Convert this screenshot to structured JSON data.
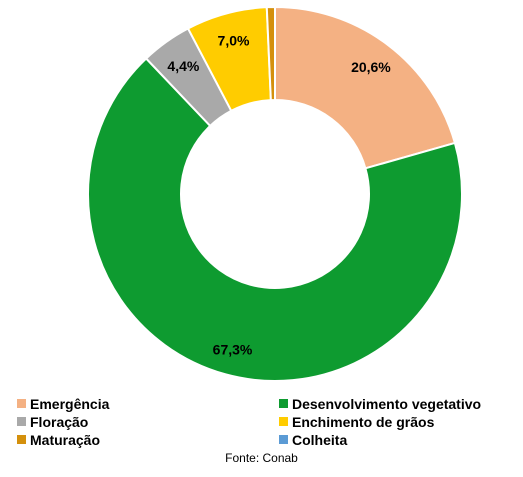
{
  "chart_data": {
    "type": "pie",
    "variant": "donut",
    "categories": [
      "Emergência",
      "Desenvolvimento vegetativo",
      "Floração",
      "Enchimento de grãos",
      "Maturação",
      "Colheita"
    ],
    "values": [
      20.6,
      67.3,
      4.4,
      7.0,
      0.7,
      0.0
    ],
    "data_labels": [
      "20,6%",
      "67,3%",
      "4,4%",
      "7,0%",
      "",
      ""
    ],
    "colors": [
      "#F4B183",
      "#0E9B30",
      "#A9A9A9",
      "#FFCC00",
      "#D4900C",
      "#5B9BD5"
    ],
    "legend_placement": "bottom"
  },
  "source": "Fonte: Conab"
}
